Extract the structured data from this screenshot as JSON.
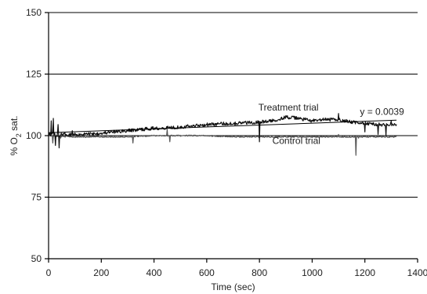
{
  "chart_data": {
    "type": "line",
    "title": "",
    "xlabel": "Time (sec)",
    "ylabel": {
      "prefix": "% O",
      "subscript": "2",
      "suffix": " sat."
    },
    "xlim": [
      0,
      1400
    ],
    "ylim": [
      50,
      150
    ],
    "x_ticks": [
      0,
      200,
      400,
      600,
      800,
      1000,
      1200,
      1400
    ],
    "y_ticks": [
      50,
      75,
      100,
      125,
      150
    ],
    "grid": "horizontal",
    "legend": "none",
    "colors": {
      "axis": "#000000",
      "grid": "#000000",
      "treatment": "#111111",
      "control": "#555555",
      "trendline": "#000000"
    },
    "series": [
      {
        "name": "Treatment trial",
        "x_end": 1320,
        "baseline": [
          [
            0,
            100.5
          ],
          [
            100,
            100.5
          ],
          [
            200,
            101
          ],
          [
            300,
            102
          ],
          [
            400,
            103
          ],
          [
            500,
            103.5
          ],
          [
            600,
            104.5
          ],
          [
            700,
            105
          ],
          [
            800,
            105.5
          ],
          [
            850,
            106
          ],
          [
            900,
            107.5
          ],
          [
            950,
            107
          ],
          [
            1000,
            106
          ],
          [
            1050,
            106.5
          ],
          [
            1100,
            106.5
          ],
          [
            1150,
            105.5
          ],
          [
            1200,
            105
          ],
          [
            1250,
            104.5
          ],
          [
            1320,
            104.5
          ]
        ],
        "spikes": [
          [
            10,
            106
          ],
          [
            18,
            107
          ],
          [
            25,
            96
          ],
          [
            35,
            104.5
          ],
          [
            40,
            95
          ],
          [
            90,
            102
          ],
          [
            800,
            97.5
          ],
          [
            1100,
            109
          ],
          [
            1200,
            101.5
          ],
          [
            1250,
            100.5
          ],
          [
            1280,
            100
          ],
          [
            1300,
            106
          ]
        ]
      },
      {
        "name": "Control trial",
        "x_end": 1320,
        "baseline": [
          [
            0,
            100
          ],
          [
            100,
            99.5
          ],
          [
            200,
            99.5
          ],
          [
            300,
            99.5
          ],
          [
            400,
            100
          ],
          [
            500,
            100
          ],
          [
            600,
            100
          ],
          [
            700,
            99.5
          ],
          [
            800,
            99.5
          ],
          [
            900,
            99.5
          ],
          [
            1000,
            99.5
          ],
          [
            1100,
            99.5
          ],
          [
            1200,
            99.5
          ],
          [
            1320,
            99.5
          ]
        ],
        "spikes": [
          [
            15,
            97
          ],
          [
            45,
            99
          ],
          [
            320,
            97
          ],
          [
            450,
            102.5
          ],
          [
            460,
            97.5
          ],
          [
            1100,
            100.5
          ],
          [
            1165,
            92
          ],
          [
            1175,
            99
          ]
        ]
      }
    ],
    "trendline": {
      "from": [
        0,
        101.2
      ],
      "to": [
        1320,
        106.3
      ]
    },
    "annotations": [
      {
        "text": "Treatment trial",
        "x": 910,
        "y": 110.2
      },
      {
        "text": "Control trial",
        "x": 940,
        "y": 96.6
      },
      {
        "text": "y = 0.0039",
        "x": 1265,
        "y": 108.5
      }
    ]
  }
}
